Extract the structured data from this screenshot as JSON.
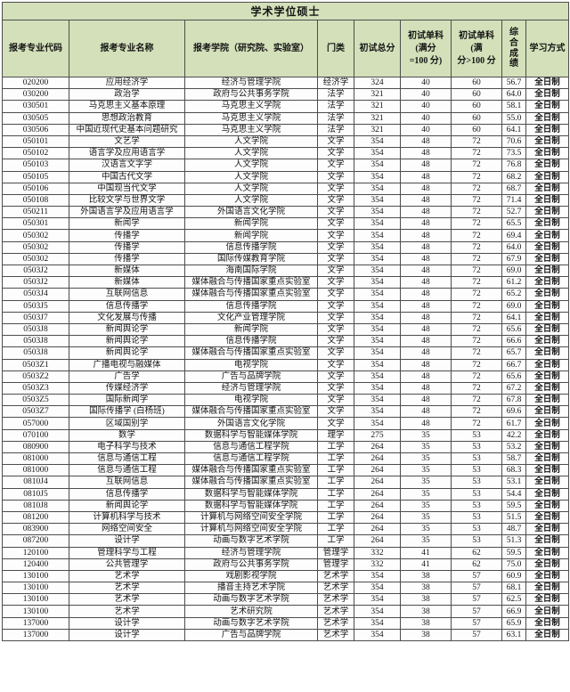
{
  "title": "学术学位硕士",
  "colors": {
    "header_bg": "#d3e0b9",
    "border": "#4d4d4d"
  },
  "header": {
    "cols": [
      "报考专业代码",
      "报考专业名称",
      "报考学院（研究院、实验室）",
      "门类",
      "初试总分",
      "初试单科\n(满分\n=100 分)",
      "初试单科\n(满\n分>100 分",
      "综合成绩",
      "学习方式"
    ]
  },
  "column_keys": [
    "code",
    "major",
    "college",
    "category",
    "total-score",
    "single-subject-100",
    "single-subject-over-100",
    "composite-score",
    "study-mode"
  ],
  "rows": [
    [
      "020200",
      "应用经济学",
      "经济与管理学院",
      "经济学",
      "324",
      "40",
      "60",
      "56.7",
      "全日制"
    ],
    [
      "030200",
      "政治学",
      "政府与公共事务学院",
      "法学",
      "321",
      "40",
      "60",
      "64.0",
      "全日制"
    ],
    [
      "030501",
      "马克思主义基本原理",
      "马克思主义学院",
      "法学",
      "321",
      "40",
      "60",
      "58.1",
      "全日制"
    ],
    [
      "030505",
      "思想政治教育",
      "马克思主义学院",
      "法学",
      "321",
      "40",
      "60",
      "55.0",
      "全日制"
    ],
    [
      "030506",
      "中国近现代史基本问题研究",
      "马克思主义学院",
      "法学",
      "321",
      "40",
      "60",
      "64.1",
      "全日制"
    ],
    [
      "050101",
      "文艺学",
      "人文学院",
      "文学",
      "354",
      "48",
      "72",
      "70.6",
      "全日制"
    ],
    [
      "050102",
      "语言学及应用语言学",
      "人文学院",
      "文学",
      "354",
      "48",
      "72",
      "73.5",
      "全日制"
    ],
    [
      "050103",
      "汉语言文字学",
      "人文学院",
      "文学",
      "354",
      "48",
      "72",
      "76.8",
      "全日制"
    ],
    [
      "050105",
      "中国古代文学",
      "人文学院",
      "文学",
      "354",
      "48",
      "72",
      "68.2",
      "全日制"
    ],
    [
      "050106",
      "中国现当代文学",
      "人文学院",
      "文学",
      "354",
      "48",
      "72",
      "68.7",
      "全日制"
    ],
    [
      "050108",
      "比较文学与世界文学",
      "人文学院",
      "文学",
      "354",
      "48",
      "72",
      "71.4",
      "全日制"
    ],
    [
      "050211",
      "外国语言学及应用语言学",
      "外国语言文化学院",
      "文学",
      "354",
      "48",
      "72",
      "52.7",
      "全日制"
    ],
    [
      "050301",
      "新闻学",
      "新闻学院",
      "文学",
      "354",
      "48",
      "72",
      "65.5",
      "全日制"
    ],
    [
      "050302",
      "传播学",
      "新闻学院",
      "文学",
      "354",
      "48",
      "72",
      "69.4",
      "全日制"
    ],
    [
      "050302",
      "传播学",
      "信息传播学院",
      "文学",
      "354",
      "48",
      "72",
      "64.0",
      "全日制"
    ],
    [
      "050302",
      "传播学",
      "国际传媒教育学院",
      "文学",
      "354",
      "48",
      "72",
      "67.9",
      "全日制"
    ],
    [
      "0503J2",
      "新媒体",
      "海南国际学院",
      "文学",
      "354",
      "48",
      "72",
      "69.0",
      "全日制"
    ],
    [
      "0503J2",
      "新媒体",
      "媒体融合与传播国家重点实验室",
      "文学",
      "354",
      "48",
      "72",
      "61.2",
      "全日制"
    ],
    [
      "0503J4",
      "互联网信息",
      "媒体融合与传播国家重点实验室",
      "文学",
      "354",
      "48",
      "72",
      "65.2",
      "全日制"
    ],
    [
      "0503J5",
      "信息传播学",
      "信息传播学院",
      "文学",
      "354",
      "48",
      "72",
      "69.0",
      "全日制"
    ],
    [
      "0503J7",
      "文化发展与传播",
      "文化产业管理学院",
      "文学",
      "354",
      "48",
      "72",
      "64.1",
      "全日制"
    ],
    [
      "0503J8",
      "新闻舆论学",
      "新闻学院",
      "文学",
      "354",
      "48",
      "72",
      "65.6",
      "全日制"
    ],
    [
      "0503J8",
      "新闻舆论学",
      "信息传播学院",
      "文学",
      "354",
      "48",
      "72",
      "66.6",
      "全日制"
    ],
    [
      "0503J8",
      "新闻舆论学",
      "媒体融合与传播国家重点实验室",
      "文学",
      "354",
      "48",
      "72",
      "65.7",
      "全日制"
    ],
    [
      "0503Z1",
      "广播电视与融媒体",
      "电视学院",
      "文学",
      "354",
      "48",
      "72",
      "66.7",
      "全日制"
    ],
    [
      "0503Z2",
      "广告学",
      "广告与品牌学院",
      "文学",
      "354",
      "48",
      "72",
      "65.6",
      "全日制"
    ],
    [
      "0503Z3",
      "传媒经济学",
      "经济与管理学院",
      "文学",
      "354",
      "48",
      "72",
      "67.2",
      "全日制"
    ],
    [
      "0503Z5",
      "国际新闻学",
      "电视学院",
      "文学",
      "354",
      "48",
      "72",
      "67.8",
      "全日制"
    ],
    [
      "0503Z7",
      "国际传播学 (白杨班)",
      "媒体融合与传播国家重点实验室",
      "文学",
      "354",
      "48",
      "72",
      "69.6",
      "全日制"
    ],
    [
      "057000",
      "区域国别学",
      "外国语言文化学院",
      "文学",
      "354",
      "48",
      "72",
      "61.7",
      "全日制"
    ],
    [
      "070100",
      "数学",
      "数据科学与智能媒体学院",
      "理学",
      "275",
      "35",
      "53",
      "42.2",
      "全日制"
    ],
    [
      "080900",
      "电子科学与技术",
      "信息与通信工程学院",
      "工学",
      "264",
      "35",
      "53",
      "53.2",
      "全日制"
    ],
    [
      "081000",
      "信息与通信工程",
      "信息与通信工程学院",
      "工学",
      "264",
      "35",
      "53",
      "58.7",
      "全日制"
    ],
    [
      "081000",
      "信息与通信工程",
      "媒体融合与传播国家重点实验室",
      "工学",
      "264",
      "35",
      "53",
      "68.3",
      "全日制"
    ],
    [
      "0810J4",
      "互联网信息",
      "媒体融合与传播国家重点实验室",
      "工学",
      "264",
      "35",
      "53",
      "53.1",
      "全日制"
    ],
    [
      "0810J5",
      "信息传播学",
      "数据科学与智能媒体学院",
      "工学",
      "264",
      "35",
      "53",
      "54.4",
      "全日制"
    ],
    [
      "0810J8",
      "新闻舆论学",
      "数据科学与智能媒体学院",
      "工学",
      "264",
      "35",
      "53",
      "59.5",
      "全日制"
    ],
    [
      "081200",
      "计算机科学与技术",
      "计算机与网络空间安全学院",
      "工学",
      "264",
      "35",
      "53",
      "51.5",
      "全日制"
    ],
    [
      "083900",
      "网络空间安全",
      "计算机与网络空间安全学院",
      "工学",
      "264",
      "35",
      "53",
      "48.7",
      "全日制"
    ],
    [
      "087200",
      "设计学",
      "动画与数字艺术学院",
      "工学",
      "264",
      "35",
      "53",
      "51.3",
      "全日制"
    ],
    [
      "120100",
      "管理科学与工程",
      "经济与管理学院",
      "管理学",
      "332",
      "41",
      "62",
      "59.5",
      "全日制"
    ],
    [
      "120400",
      "公共管理学",
      "政府与公共事务学院",
      "管理学",
      "332",
      "41",
      "62",
      "75.0",
      "全日制"
    ],
    [
      "130100",
      "艺术学",
      "戏剧影视学院",
      "艺术学",
      "354",
      "38",
      "57",
      "60.9",
      "全日制"
    ],
    [
      "130100",
      "艺术学",
      "播音主持艺术学院",
      "艺术学",
      "354",
      "38",
      "57",
      "68.1",
      "全日制"
    ],
    [
      "130100",
      "艺术学",
      "动画与数字艺术学院",
      "艺术学",
      "354",
      "38",
      "57",
      "62.5",
      "全日制"
    ],
    [
      "130100",
      "艺术学",
      "艺术研究院",
      "艺术学",
      "354",
      "38",
      "57",
      "66.9",
      "全日制"
    ],
    [
      "137000",
      "设计学",
      "动画与数字艺术学院",
      "艺术学",
      "354",
      "38",
      "57",
      "65.9",
      "全日制"
    ],
    [
      "137000",
      "设计学",
      "广告与品牌学院",
      "艺术学",
      "354",
      "38",
      "57",
      "63.1",
      "全日制"
    ]
  ]
}
